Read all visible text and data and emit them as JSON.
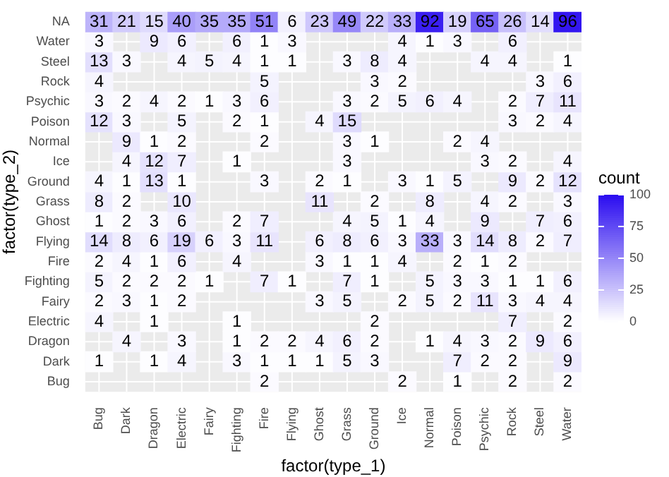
{
  "chart_data": {
    "type": "heatmap",
    "xlabel": "factor(type_1)",
    "ylabel": "factor(type_2)",
    "clabel": "count",
    "grid": true,
    "colors": [
      "#ffffff",
      "#2a0cf0"
    ],
    "clim": [
      0,
      100
    ],
    "cticks": [
      0,
      25,
      50,
      75,
      100
    ],
    "data_labels": true,
    "categories": [
      "Bug",
      "Dark",
      "Dragon",
      "Electric",
      "Fairy",
      "Fighting",
      "Fire",
      "Flying",
      "Ghost",
      "Grass",
      "Ground",
      "Ice",
      "Normal",
      "Poison",
      "Psychic",
      "Rock",
      "Steel",
      "Water"
    ],
    "y_categories": [
      "NA",
      "Water",
      "Steel",
      "Rock",
      "Psychic",
      "Poison",
      "Normal",
      "Ice",
      "Ground",
      "Grass",
      "Ghost",
      "Flying",
      "Fire",
      "Fighting",
      "Fairy",
      "Electric",
      "Dragon",
      "Dark",
      "Bug"
    ],
    "cells": [
      [
        31,
        21,
        15,
        40,
        35,
        35,
        51,
        6,
        23,
        49,
        22,
        33,
        92,
        19,
        65,
        26,
        14,
        96
      ],
      [
        3,
        null,
        9,
        6,
        null,
        6,
        1,
        3,
        null,
        null,
        null,
        4,
        1,
        3,
        null,
        6,
        null,
        null
      ],
      [
        13,
        3,
        null,
        4,
        5,
        4,
        1,
        1,
        null,
        3,
        8,
        4,
        null,
        null,
        4,
        4,
        null,
        1
      ],
      [
        4,
        null,
        null,
        null,
        null,
        null,
        5,
        null,
        null,
        null,
        3,
        2,
        null,
        null,
        null,
        null,
        3,
        6
      ],
      [
        3,
        2,
        4,
        2,
        1,
        3,
        6,
        null,
        null,
        3,
        2,
        5,
        6,
        4,
        null,
        2,
        7,
        11
      ],
      [
        12,
        3,
        null,
        5,
        null,
        2,
        1,
        null,
        4,
        15,
        null,
        null,
        null,
        null,
        null,
        3,
        2,
        4
      ],
      [
        null,
        9,
        1,
        2,
        null,
        null,
        2,
        null,
        null,
        3,
        1,
        null,
        null,
        2,
        4,
        null,
        null,
        null
      ],
      [
        null,
        4,
        12,
        7,
        null,
        1,
        null,
        null,
        null,
        3,
        null,
        null,
        null,
        null,
        3,
        2,
        null,
        4
      ],
      [
        4,
        1,
        13,
        1,
        null,
        null,
        3,
        null,
        2,
        1,
        null,
        3,
        1,
        5,
        null,
        9,
        2,
        12
      ],
      [
        8,
        2,
        null,
        10,
        null,
        null,
        null,
        null,
        11,
        null,
        2,
        null,
        8,
        null,
        4,
        2,
        null,
        3
      ],
      [
        1,
        2,
        3,
        6,
        null,
        2,
        7,
        null,
        null,
        4,
        5,
        1,
        4,
        null,
        9,
        null,
        7,
        6
      ],
      [
        14,
        8,
        6,
        19,
        6,
        3,
        11,
        null,
        6,
        8,
        6,
        3,
        33,
        3,
        14,
        8,
        2,
        7
      ],
      [
        2,
        4,
        1,
        6,
        null,
        4,
        null,
        null,
        3,
        1,
        1,
        4,
        null,
        2,
        1,
        2,
        null,
        null
      ],
      [
        5,
        2,
        2,
        2,
        1,
        null,
        7,
        1,
        null,
        7,
        1,
        null,
        5,
        3,
        3,
        1,
        1,
        6
      ],
      [
        2,
        3,
        1,
        2,
        null,
        null,
        null,
        null,
        3,
        5,
        null,
        2,
        5,
        2,
        11,
        3,
        4,
        4
      ],
      [
        4,
        null,
        1,
        null,
        null,
        1,
        null,
        null,
        null,
        null,
        2,
        null,
        null,
        null,
        null,
        7,
        null,
        2
      ],
      [
        null,
        4,
        null,
        3,
        null,
        1,
        2,
        2,
        4,
        6,
        2,
        null,
        1,
        4,
        3,
        2,
        9,
        6
      ],
      [
        1,
        null,
        1,
        4,
        null,
        3,
        1,
        1,
        1,
        5,
        3,
        null,
        null,
        7,
        2,
        2,
        null,
        9
      ],
      [
        null,
        null,
        null,
        null,
        null,
        null,
        2,
        null,
        null,
        null,
        null,
        2,
        null,
        1,
        null,
        2,
        null,
        2
      ]
    ]
  }
}
